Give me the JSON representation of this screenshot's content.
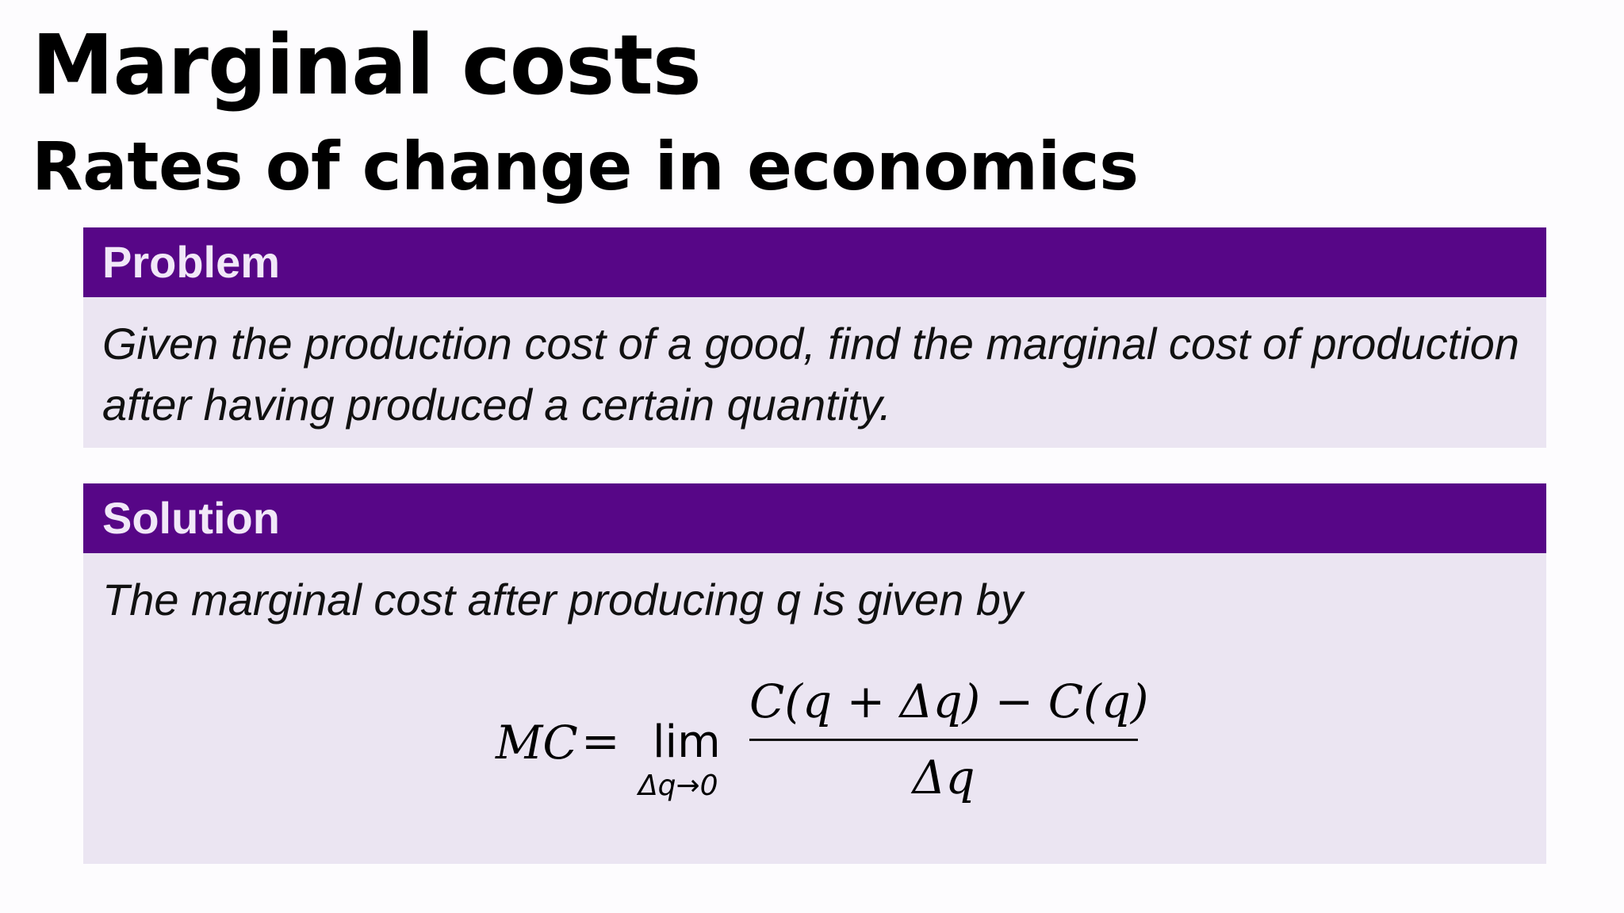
{
  "slide": {
    "title": "Marginal costs",
    "subtitle": "Rates of change in economics"
  },
  "problem": {
    "header": "Problem",
    "body": "Given the production cost of a good, find the marginal cost of production after having produced a certain quantity."
  },
  "solution": {
    "header": "Solution",
    "body": "The marginal cost after producing q is given by",
    "formula": {
      "lhs": "MC",
      "equals": "=",
      "operator": "lim",
      "limit_subscript": "Δq→0",
      "numerator": "C(q + Δq) − C(q)",
      "denominator": "Δq"
    }
  },
  "colors": {
    "header_background": "#570687",
    "header_text": "#f1e8f8",
    "block_background": "#ebe5f2"
  }
}
